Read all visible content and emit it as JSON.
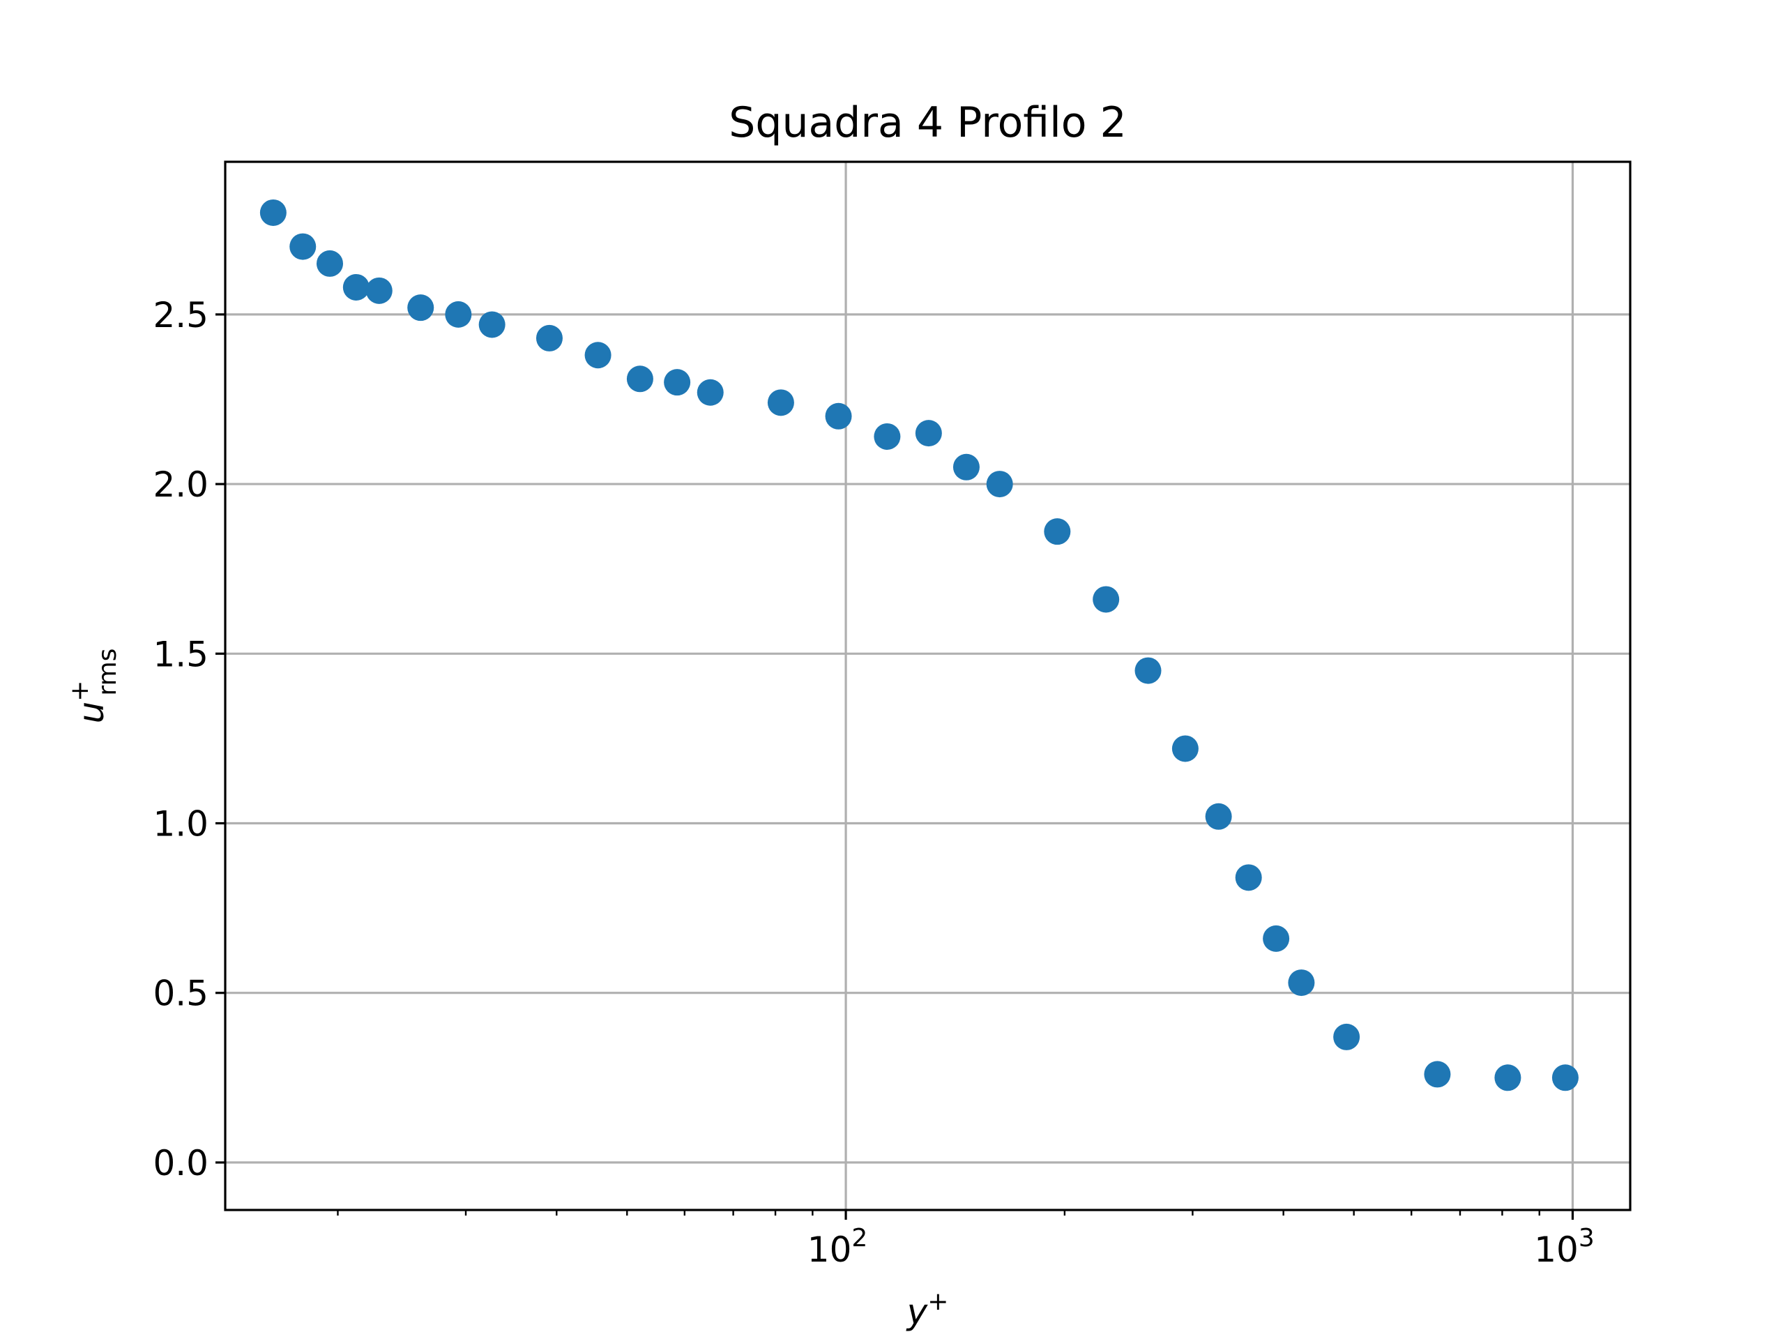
{
  "chart_data": {
    "type": "scatter",
    "title": "Squadra 4 Profilo 2",
    "xlabel": {
      "base": "y",
      "sup": "+"
    },
    "ylabel": {
      "base": "u",
      "sup": "+",
      "sub": "rms"
    },
    "xscale": "log",
    "xlim": [
      14.0,
      1200.0
    ],
    "ylim": [
      -0.14,
      2.95
    ],
    "grid": true,
    "marker_color": "#1f77b4",
    "x_ticks": [
      {
        "value": 100,
        "base": "10",
        "exp": "2"
      },
      {
        "value": 1000,
        "base": "10",
        "exp": "3"
      }
    ],
    "y_ticks": [
      {
        "value": 0.0,
        "label": "0.0"
      },
      {
        "value": 0.5,
        "label": "0.5"
      },
      {
        "value": 1.0,
        "label": "1.0"
      },
      {
        "value": 1.5,
        "label": "1.5"
      },
      {
        "value": 2.0,
        "label": "2.0"
      },
      {
        "value": 2.5,
        "label": "2.5"
      }
    ],
    "x": [
      16.3,
      17.9,
      19.5,
      21.2,
      22.8,
      26.0,
      29.3,
      32.6,
      39.1,
      45.6,
      52.1,
      58.6,
      65.1,
      81.4,
      97.7,
      114.0,
      130.0,
      146.5,
      162.8,
      195.4,
      228.0,
      260.5,
      293.1,
      325.7,
      358.2,
      390.8,
      423.4,
      488.5,
      651.4,
      814.2,
      977.0
    ],
    "y": [
      2.8,
      2.7,
      2.65,
      2.58,
      2.57,
      2.52,
      2.5,
      2.47,
      2.43,
      2.38,
      2.31,
      2.3,
      2.27,
      2.24,
      2.2,
      2.14,
      2.15,
      2.05,
      2.0,
      1.86,
      1.66,
      1.45,
      1.22,
      1.02,
      0.84,
      0.66,
      0.53,
      0.37,
      0.26,
      0.25,
      0.25
    ]
  }
}
